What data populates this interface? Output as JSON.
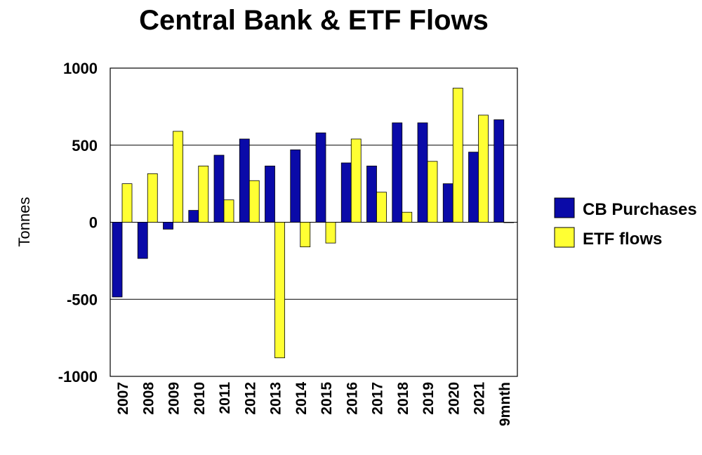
{
  "chart_data": {
    "type": "bar",
    "title": "Central Bank & ETF Flows",
    "ylabel": "Tonnes",
    "xlabel": "",
    "ylim": [
      -1000,
      1000
    ],
    "yticks": [
      1000,
      500,
      0,
      -500,
      -1000
    ],
    "grid": "horizontal",
    "legend_position": "right",
    "categories": [
      "2007",
      "2008",
      "2009",
      "2010",
      "2011",
      "2012",
      "2013",
      "2014",
      "2015",
      "2016",
      "2017",
      "2018",
      "2019",
      "2020",
      "2021",
      "9mnth"
    ],
    "series": [
      {
        "name": "CB Purchases",
        "color": "#0a0aa8",
        "values": [
          -485,
          -235,
          -45,
          77,
          435,
          540,
          365,
          470,
          580,
          385,
          365,
          645,
          645,
          250,
          455,
          665
        ]
      },
      {
        "name": "ETF flows",
        "color": "#ffff33",
        "values": [
          250,
          315,
          590,
          365,
          145,
          270,
          -880,
          -160,
          -135,
          540,
          195,
          65,
          395,
          870,
          695,
          0
        ]
      }
    ]
  }
}
